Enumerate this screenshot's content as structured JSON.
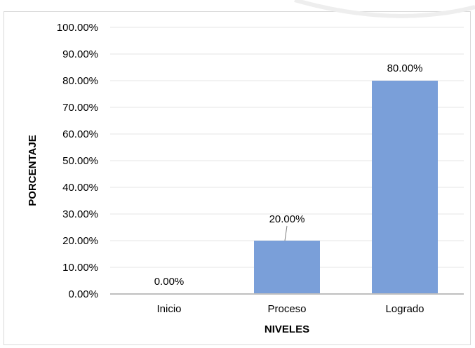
{
  "chart_data": {
    "type": "bar",
    "title": "",
    "xlabel": "NIVELES",
    "ylabel": "PORCENTAJE",
    "categories": [
      "Inicio",
      "Proceso",
      "Logrado"
    ],
    "values": [
      0,
      20,
      80
    ],
    "data_labels": [
      "0.00%",
      "20.00%",
      "80.00%"
    ],
    "ylim": [
      0,
      100
    ],
    "y_ticks": [
      "0.00%",
      "10.00%",
      "20.00%",
      "30.00%",
      "40.00%",
      "50.00%",
      "60.00%",
      "70.00%",
      "80.00%",
      "90.00%",
      "100.00%"
    ],
    "grid": true,
    "legend": "none",
    "bar_color": "#7a9fd9",
    "gridline_color": "#e6e6e6",
    "axis_color": "#bfbfbf"
  }
}
